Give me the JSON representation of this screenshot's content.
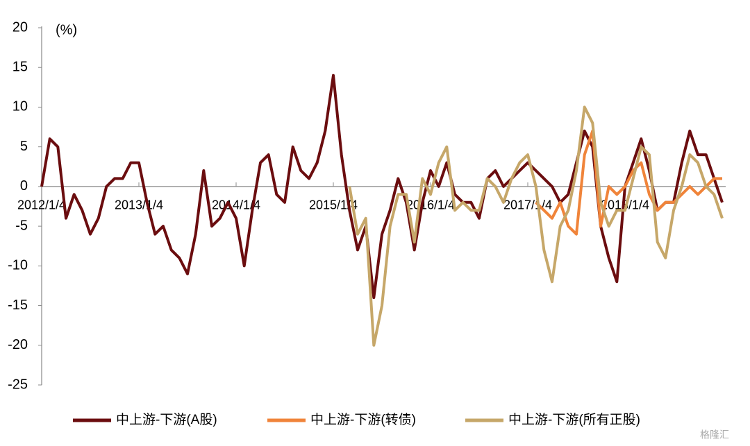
{
  "chart_data": {
    "type": "line",
    "y_label": "(%)",
    "watermark": "格隆汇",
    "categories": [
      "2012/1/4",
      null,
      null,
      null,
      null,
      null,
      null,
      null,
      null,
      null,
      null,
      null,
      "2013/1/4",
      null,
      null,
      null,
      null,
      null,
      null,
      null,
      null,
      null,
      null,
      null,
      "2014/1/4",
      null,
      null,
      null,
      null,
      null,
      null,
      null,
      null,
      null,
      null,
      null,
      "2015/1/4",
      null,
      null,
      null,
      null,
      null,
      null,
      null,
      null,
      null,
      null,
      null,
      "2016/1/4",
      null,
      null,
      null,
      null,
      null,
      null,
      null,
      null,
      null,
      null,
      null,
      "2017/1/4",
      null,
      null,
      null,
      null,
      null,
      null,
      null,
      null,
      null,
      null,
      null,
      "2018/1/4",
      null,
      null,
      null,
      null,
      null,
      null,
      null,
      null,
      null,
      null,
      null,
      null
    ],
    "series": [
      {
        "name": "中上游-下游(A股)",
        "color": "#6b0d0f",
        "values": [
          0,
          6,
          5,
          -4,
          -1,
          -3,
          -6,
          -4,
          0,
          1,
          1,
          3,
          3,
          -2,
          -6,
          -5,
          -8,
          -9,
          -11,
          -6,
          2,
          -5,
          -4,
          -2,
          -4,
          -10,
          -3,
          3,
          4,
          -1,
          -2,
          5,
          2,
          1,
          3,
          7,
          14,
          4,
          -3,
          -8,
          -5,
          -14,
          -6,
          -3,
          1,
          -2,
          -8,
          -2,
          2,
          0,
          3,
          -1,
          -2,
          -2,
          -4,
          1,
          2,
          0,
          1,
          2,
          3,
          2,
          1,
          0,
          -2,
          -1,
          3,
          7,
          5,
          -5,
          -9,
          -12,
          0,
          3,
          6,
          2,
          -3,
          -2,
          -2,
          3,
          7,
          4,
          4,
          1,
          -2
        ]
      },
      {
        "name": "中上游-下游(转债)",
        "color": "#f0843a",
        "values": [
          null,
          null,
          null,
          null,
          null,
          null,
          null,
          null,
          null,
          null,
          null,
          null,
          null,
          null,
          null,
          null,
          null,
          null,
          null,
          null,
          null,
          null,
          null,
          null,
          null,
          null,
          null,
          null,
          null,
          null,
          null,
          null,
          null,
          null,
          null,
          null,
          null,
          null,
          null,
          null,
          null,
          null,
          null,
          null,
          null,
          null,
          null,
          null,
          null,
          null,
          null,
          null,
          null,
          null,
          null,
          null,
          null,
          null,
          null,
          null,
          null,
          -2,
          -3,
          -4,
          -2,
          -5,
          -6,
          4,
          7,
          -5,
          0,
          -1,
          0,
          2,
          3,
          -1,
          -3,
          -2,
          -2,
          -1,
          0,
          -1,
          0,
          1,
          1
        ]
      },
      {
        "name": "中上游-下游(所有正股)",
        "color": "#c6a769",
        "values": [
          null,
          null,
          null,
          null,
          null,
          null,
          null,
          null,
          null,
          null,
          null,
          null,
          null,
          null,
          null,
          null,
          null,
          null,
          null,
          null,
          null,
          null,
          null,
          null,
          null,
          null,
          null,
          null,
          null,
          null,
          null,
          null,
          null,
          null,
          null,
          null,
          null,
          null,
          0,
          -6,
          -4,
          -20,
          -15,
          -5,
          -1,
          -1,
          -7,
          1,
          -1,
          3,
          5,
          -3,
          -2,
          -3,
          -3,
          1,
          0,
          -2,
          1,
          3,
          4,
          0,
          -8,
          -12,
          -5,
          -3,
          2,
          10,
          8,
          -2,
          -5,
          -3,
          -3,
          1,
          5,
          4,
          -7,
          -9,
          -3,
          0,
          4,
          3,
          0,
          -1,
          -4
        ]
      }
    ],
    "ylim": [
      -25,
      20
    ],
    "yticks": [
      -25,
      -20,
      -15,
      -10,
      -5,
      0,
      5,
      10,
      15,
      20
    ]
  }
}
